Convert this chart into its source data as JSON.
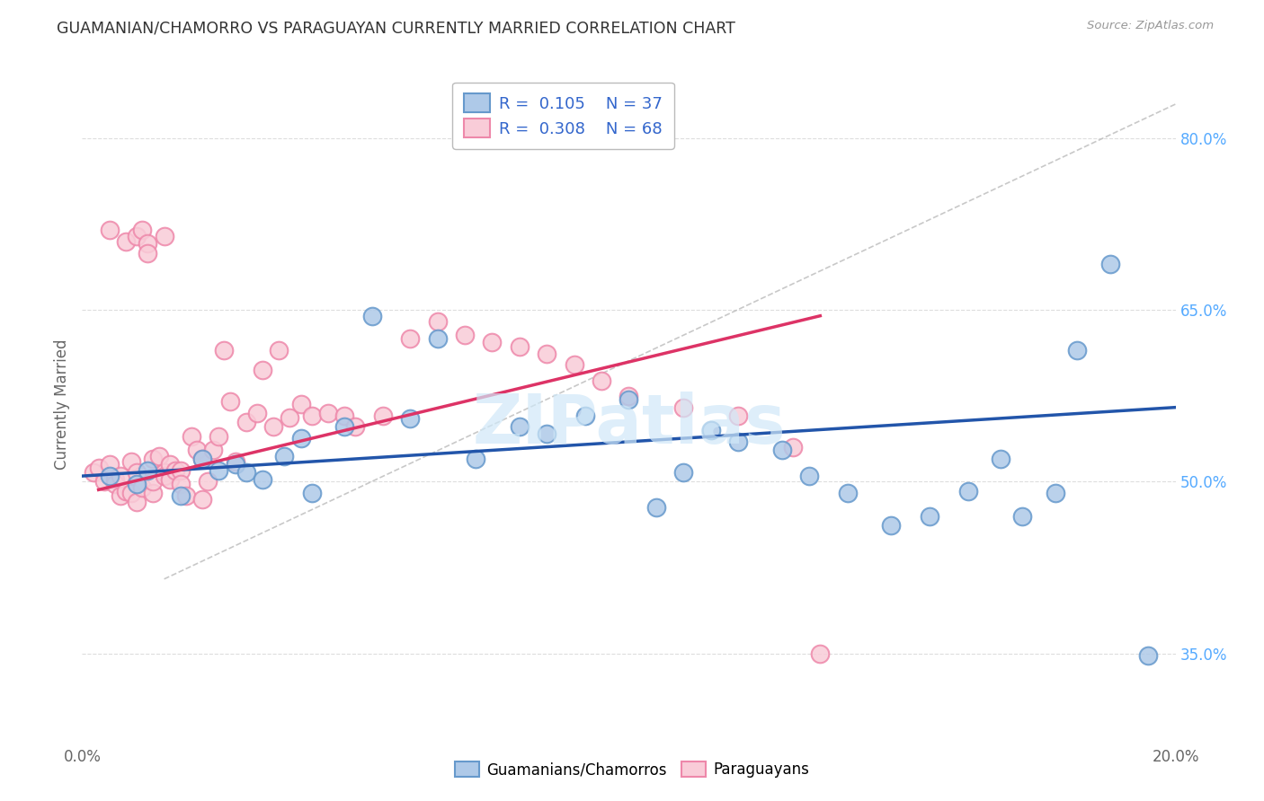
{
  "title": "GUAMANIAN/CHAMORRO VS PARAGUAYAN CURRENTLY MARRIED CORRELATION CHART",
  "source": "Source: ZipAtlas.com",
  "ylabel": "Currently Married",
  "y_tick_labels": [
    "35.0%",
    "50.0%",
    "65.0%",
    "80.0%"
  ],
  "y_tick_values": [
    0.35,
    0.5,
    0.65,
    0.8
  ],
  "x_range": [
    0.0,
    0.2
  ],
  "y_range": [
    0.27,
    0.865
  ],
  "x_tick_positions": [
    0.0,
    0.05,
    0.1,
    0.15,
    0.2
  ],
  "x_tick_labels": [
    "0.0%",
    "",
    "",
    "",
    "20.0%"
  ],
  "legend_label1": "Guamanians/Chamorros",
  "legend_label2": "Paraguayans",
  "R1": "0.105",
  "N1": "37",
  "R2": "0.308",
  "N2": "68",
  "color_blue_edge": "#6699cc",
  "color_blue_fill": "#aec9e8",
  "color_blue_line": "#2255aa",
  "color_pink_edge": "#ee88aa",
  "color_pink_fill": "#f9ccd8",
  "color_pink_line": "#dd3366",
  "color_legend_text": "#3366cc",
  "color_dashed": "#bbbbbb",
  "color_grid": "#dddddd",
  "color_title": "#333333",
  "color_source": "#999999",
  "color_axis_label": "#666666",
  "color_right_tick": "#55aaff",
  "color_watermark": "#d0e8f8",
  "watermark": "ZIPatlas",
  "blue_x": [
    0.005,
    0.01,
    0.012,
    0.018,
    0.022,
    0.025,
    0.028,
    0.03,
    0.033,
    0.037,
    0.04,
    0.042,
    0.048,
    0.053,
    0.06,
    0.065,
    0.072,
    0.08,
    0.085,
    0.092,
    0.1,
    0.105,
    0.11,
    0.115,
    0.12,
    0.128,
    0.133,
    0.14,
    0.148,
    0.155,
    0.162,
    0.168,
    0.172,
    0.178,
    0.182,
    0.188,
    0.195
  ],
  "blue_y": [
    0.505,
    0.498,
    0.51,
    0.488,
    0.52,
    0.51,
    0.515,
    0.508,
    0.502,
    0.522,
    0.538,
    0.49,
    0.548,
    0.645,
    0.555,
    0.625,
    0.52,
    0.548,
    0.542,
    0.558,
    0.572,
    0.478,
    0.508,
    0.545,
    0.535,
    0.528,
    0.505,
    0.49,
    0.462,
    0.47,
    0.492,
    0.52,
    0.47,
    0.49,
    0.615,
    0.69,
    0.348
  ],
  "pink_x": [
    0.002,
    0.003,
    0.004,
    0.005,
    0.005,
    0.006,
    0.006,
    0.007,
    0.007,
    0.008,
    0.008,
    0.009,
    0.009,
    0.01,
    0.01,
    0.01,
    0.011,
    0.011,
    0.012,
    0.012,
    0.013,
    0.013,
    0.013,
    0.014,
    0.015,
    0.015,
    0.015,
    0.016,
    0.016,
    0.017,
    0.018,
    0.018,
    0.019,
    0.02,
    0.021,
    0.022,
    0.022,
    0.023,
    0.024,
    0.025,
    0.026,
    0.027,
    0.028,
    0.03,
    0.032,
    0.033,
    0.035,
    0.036,
    0.038,
    0.04,
    0.042,
    0.045,
    0.048,
    0.05,
    0.055,
    0.06,
    0.065,
    0.07,
    0.075,
    0.08,
    0.085,
    0.09,
    0.095,
    0.1,
    0.11,
    0.12,
    0.13,
    0.135
  ],
  "pink_y": [
    0.508,
    0.512,
    0.5,
    0.515,
    0.72,
    0.502,
    0.498,
    0.505,
    0.488,
    0.492,
    0.71,
    0.518,
    0.49,
    0.715,
    0.508,
    0.482,
    0.72,
    0.495,
    0.708,
    0.7,
    0.52,
    0.49,
    0.5,
    0.522,
    0.508,
    0.505,
    0.715,
    0.515,
    0.502,
    0.51,
    0.51,
    0.498,
    0.488,
    0.54,
    0.528,
    0.52,
    0.485,
    0.5,
    0.528,
    0.54,
    0.615,
    0.57,
    0.518,
    0.552,
    0.56,
    0.598,
    0.548,
    0.615,
    0.556,
    0.568,
    0.558,
    0.56,
    0.558,
    0.548,
    0.558,
    0.625,
    0.64,
    0.628,
    0.622,
    0.618,
    0.612,
    0.602,
    0.588,
    0.575,
    0.565,
    0.558,
    0.53,
    0.35
  ]
}
